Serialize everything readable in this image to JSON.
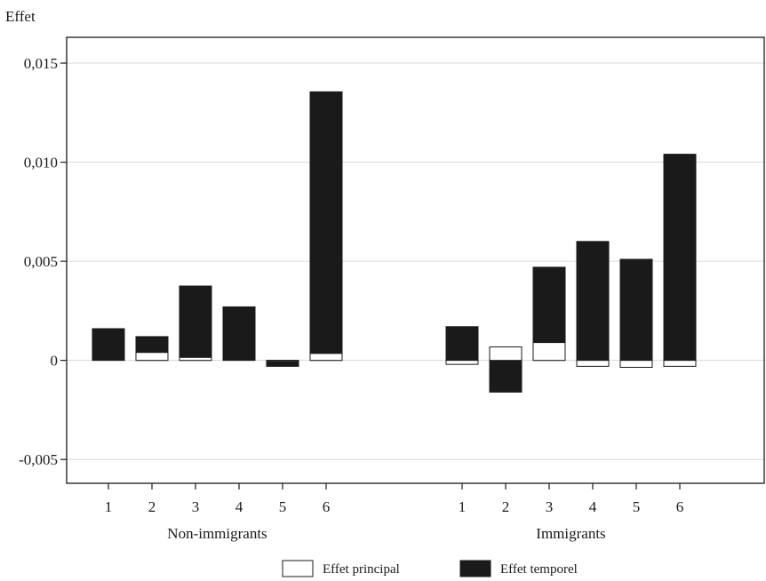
{
  "chart_data": {
    "type": "bar",
    "ylabel": "Effet",
    "ylim": [
      -0.0062,
      0.0163
    ],
    "yticks": [
      -0.005,
      0,
      0.005,
      0.01,
      0.015
    ],
    "ytick_labels": [
      "-0,005",
      "0",
      "0,005",
      "0,010",
      "0,015"
    ],
    "grid": true,
    "legend_position": "bottom-center",
    "colors": {
      "Effet principal": "#ffffff",
      "Effet temporel": "#1a1a1a",
      "axis": "#1a1a1a",
      "grid": "#d9d9d9"
    },
    "groups": [
      {
        "label": "Non-immigrants",
        "categories": [
          "1",
          "2",
          "3",
          "4",
          "5",
          "6"
        ],
        "Effet principal": [
          0.0,
          0.0004,
          0.00015,
          0.0,
          -5e-05,
          0.00035
        ],
        "Effet temporel": [
          0.0016,
          0.0012,
          0.00375,
          0.0027,
          -0.0003,
          0.01355
        ]
      },
      {
        "label": "Immigrants",
        "categories": [
          "1",
          "2",
          "3",
          "4",
          "5",
          "6"
        ],
        "Effet principal": [
          -0.0002,
          0.00068,
          0.0009,
          -0.0003,
          -0.00035,
          -0.0003
        ],
        "Effet temporel": [
          0.0017,
          -0.0016,
          0.0047,
          0.006,
          0.0051,
          0.0104
        ]
      }
    ],
    "series": [
      {
        "name": "Effet principal"
      },
      {
        "name": "Effet temporel"
      }
    ]
  }
}
